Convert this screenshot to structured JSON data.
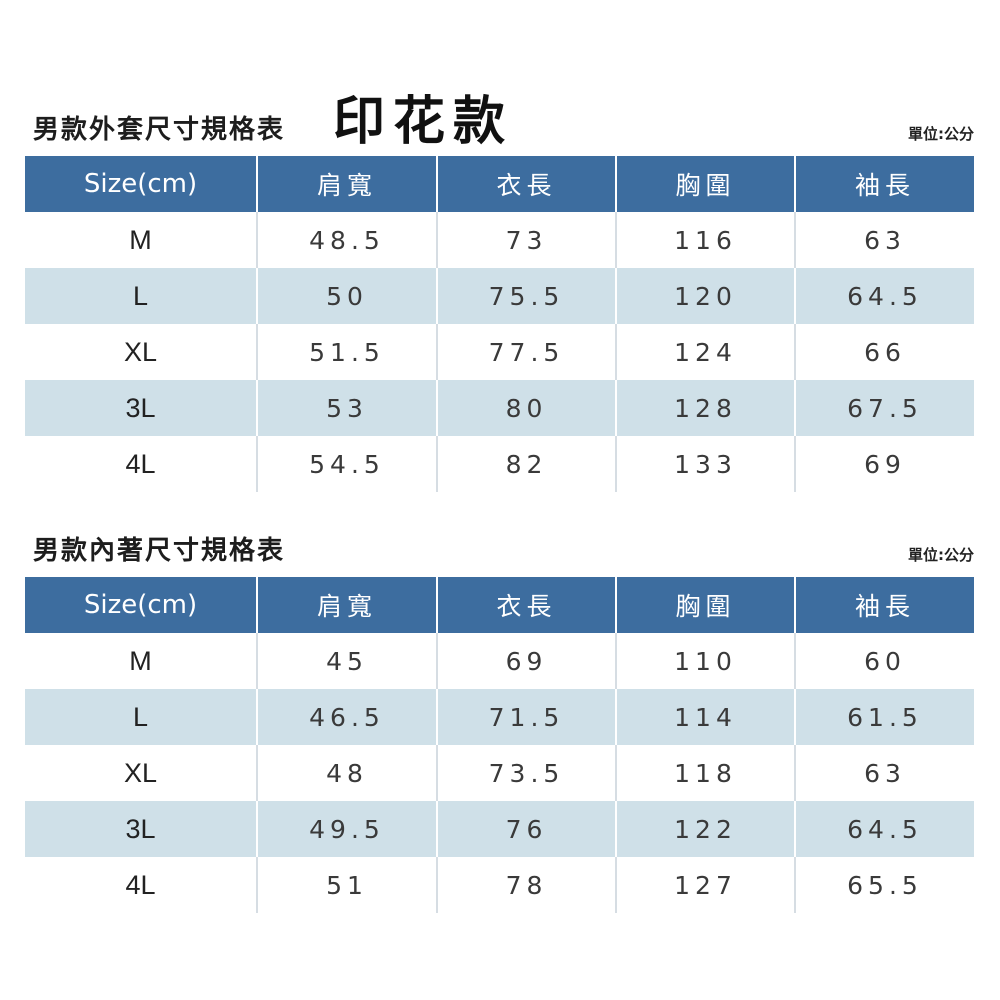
{
  "outer": {
    "title": "男款外套尺寸規格表",
    "subtitle": "印花款",
    "unit": "單位:公分",
    "headers": [
      "Size(cm)",
      "肩寬",
      "衣長",
      "胸圍",
      "袖長"
    ],
    "rows": [
      [
        "M",
        "48.5",
        "73",
        "116",
        "63"
      ],
      [
        "L",
        "50",
        "75.5",
        "120",
        "64.5"
      ],
      [
        "XL",
        "51.5",
        "77.5",
        "124",
        "66"
      ],
      [
        "3L",
        "53",
        "80",
        "128",
        "67.5"
      ],
      [
        "4L",
        "54.5",
        "82",
        "133",
        "69"
      ]
    ]
  },
  "inner": {
    "title": "男款內著尺寸規格表",
    "unit": "單位:公分",
    "headers": [
      "Size(cm)",
      "肩寬",
      "衣長",
      "胸圍",
      "袖長"
    ],
    "rows": [
      [
        "M",
        "45",
        "69",
        "110",
        "60"
      ],
      [
        "L",
        "46.5",
        "71.5",
        "114",
        "61.5"
      ],
      [
        "XL",
        "48",
        "73.5",
        "118",
        "63"
      ],
      [
        "3L",
        "49.5",
        "76",
        "122",
        "64.5"
      ],
      [
        "4L",
        "51",
        "78",
        "127",
        "65.5"
      ]
    ]
  },
  "colors": {
    "header_bg": "#3d6d9f",
    "stripe_bg": "#cfe0e8"
  }
}
